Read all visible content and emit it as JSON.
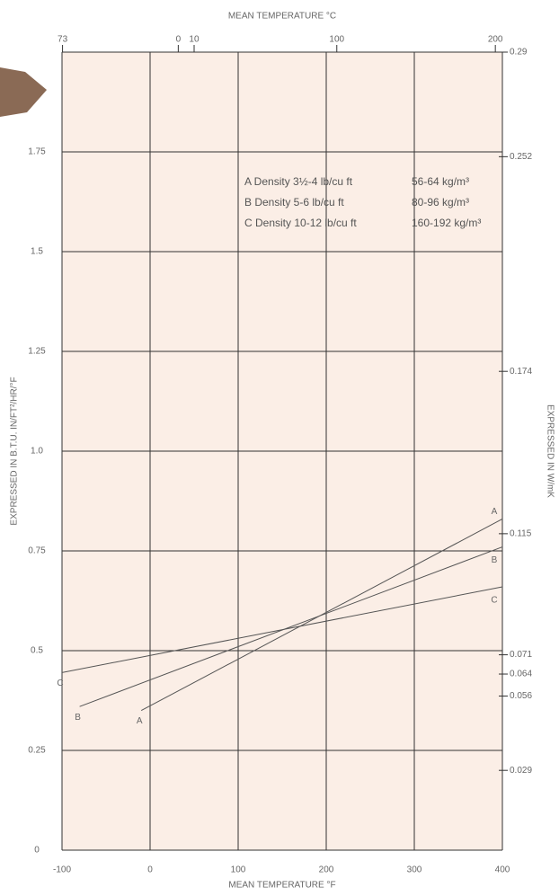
{
  "chart_data": {
    "type": "line",
    "x_label_top": "MEAN TEMPERATURE °C",
    "x_label": "MEAN TEMPERATURE °F",
    "y_label": "EXPRESSED IN B.T.U. IN/FT²/HR/°F",
    "y2_label": "EXPRESSED IN W/mK",
    "xlim": [
      -100,
      400
    ],
    "xticks": [
      -100,
      0,
      100,
      200,
      300,
      400
    ],
    "x2lim": [
      -73.33,
      204.44
    ],
    "x2ticks": [
      {
        "value": -73,
        "label": "73"
      },
      0,
      10,
      100,
      200
    ],
    "ylim": [
      0,
      2
    ],
    "yticks": [
      0,
      0.25,
      0.5,
      0.75,
      {
        "value": 1,
        "label": "1.0"
      },
      1.25,
      1.5,
      1.75
    ],
    "y2lim": [
      0,
      0.29
    ],
    "y2ticks": [
      0.029,
      0.056,
      0.064,
      0.071,
      0.115,
      0.174,
      0.252,
      0.29
    ],
    "grid": true,
    "series": [
      {
        "name": "A",
        "color": "#555555",
        "x": [
          -10,
          400
        ],
        "values": [
          0.35,
          0.83
        ]
      },
      {
        "name": "B",
        "color": "#555555",
        "x": [
          -80,
          400
        ],
        "values": [
          0.36,
          0.76
        ]
      },
      {
        "name": "C",
        "color": "#555555",
        "x": [
          -100,
          400
        ],
        "values": [
          0.445,
          0.66
        ]
      }
    ],
    "legend_rows": [
      [
        "A Density 3½-4 lb/cu ft",
        "56-64 kg/m³"
      ],
      [
        "B Density 5-6 lb/cu ft",
        "80-96 kg/m³"
      ],
      [
        "C Density 10-12 lb/cu ft",
        "160-192 kg/m³"
      ]
    ]
  }
}
